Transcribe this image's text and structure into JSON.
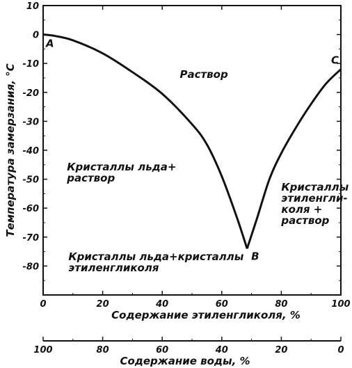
{
  "chart_data": {
    "type": "line",
    "xlabel": "Содержание этиленгликоля, %",
    "xlabel2": "Содержание воды, %",
    "ylabel": "Температура замерзания, °С",
    "xlim": [
      0,
      100
    ],
    "ylim": [
      -90,
      10
    ],
    "x_ticks": [
      "0",
      "20",
      "40",
      "60",
      "80",
      "100"
    ],
    "x2_ticks": [
      "100",
      "80",
      "60",
      "40",
      "20",
      "0"
    ],
    "y_ticks": [
      "10",
      "0",
      "-10",
      "-20",
      "-30",
      "-40",
      "-50",
      "-60",
      "-70",
      "-80"
    ],
    "series": [
      {
        "x": [
          0,
          4,
          10,
          20,
          30,
          40,
          50,
          55,
          60,
          65,
          68.5,
          72,
          76,
          80,
          85,
          90,
          95,
          100
        ],
        "y": [
          0,
          -0.5,
          -2,
          -6.5,
          -13,
          -20.5,
          -31,
          -38,
          -49,
          -63,
          -74,
          -63,
          -50,
          -41,
          -32,
          -24,
          -17,
          -12
        ]
      }
    ],
    "points": [
      {
        "label": "A",
        "x": 0,
        "y": 0
      },
      {
        "label": "B",
        "x": 68.5,
        "y": -74
      },
      {
        "label": "C",
        "x": 100,
        "y": -12
      }
    ],
    "annotations": [
      {
        "lines": [
          "Раствор"
        ],
        "x": 54,
        "y": -15,
        "align": "middle"
      },
      {
        "lines": [
          "Кристаллы льда+",
          "раствор"
        ],
        "x": 8,
        "y": -47,
        "align": "start"
      },
      {
        "lines": [
          "Кристаллы льда+кристаллы",
          "этиленгликоля"
        ],
        "x": 8.5,
        "y": -78,
        "align": "start"
      },
      {
        "lines": [
          "Кристаллы",
          "этиленгли-",
          "коля +",
          "раствор"
        ],
        "x": 80,
        "y": -54,
        "align": "start"
      }
    ]
  }
}
